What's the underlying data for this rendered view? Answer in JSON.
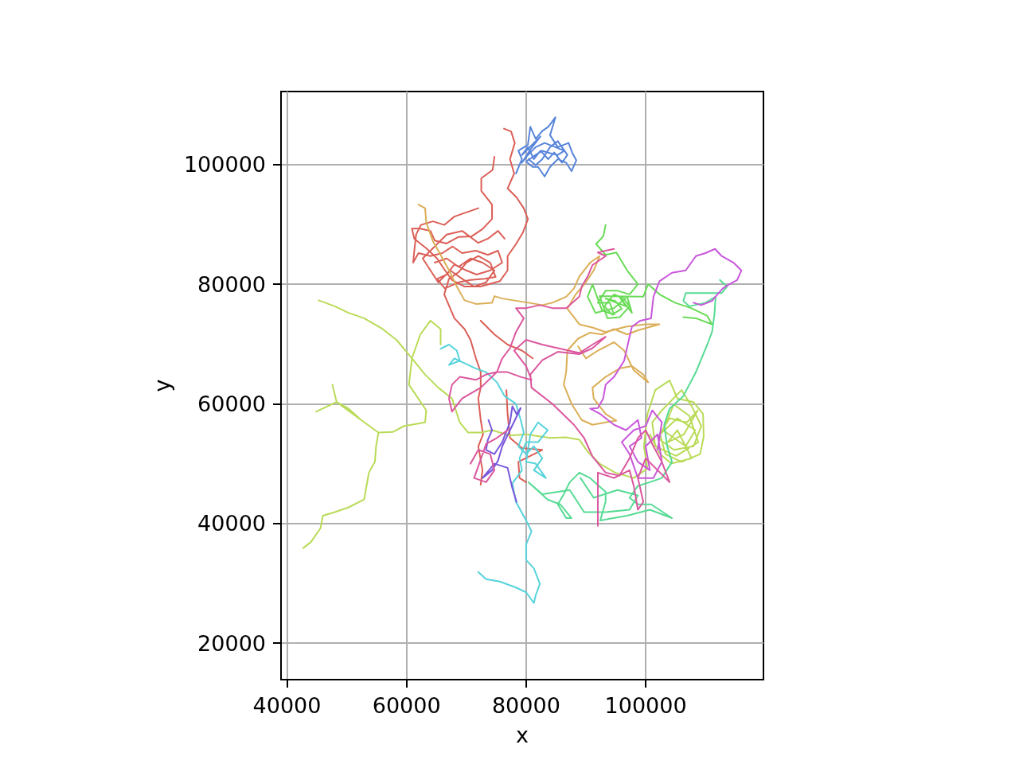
{
  "chart_data": {
    "type": "line",
    "xlabel": "x",
    "ylabel": "y",
    "xlim": [
      39000,
      119700
    ],
    "ylim": [
      13900,
      112200
    ],
    "xticks": [
      40000,
      60000,
      80000,
      100000
    ],
    "yticks": [
      20000,
      40000,
      60000,
      80000,
      100000
    ],
    "grid": true,
    "marker": "none",
    "line_style": "solid",
    "series": [
      {
        "color": "#db5f57",
        "x": [
          76300,
          77500,
          78100,
          77300,
          78000,
          76900,
          78400,
          79600,
          80300,
          79500,
          78300,
          76900,
          76900,
          75600,
          72400,
          69700,
          67600,
          66300,
          65100,
          63300,
          61300,
          60900,
          62300,
          64000,
          64700,
          66700,
          68700,
          70900,
          72700,
          74300,
          74300,
          72500,
          72500,
          74400,
          74700,
          null,
          72000,
          69700,
          68000,
          66300,
          64400,
          62400,
          61600,
          61300,
          61100,
          62000,
          64000,
          66000,
          67700,
          69300,
          71600,
          73600,
          75300,
          76000,
          74000,
          71700,
          70000,
          68000,
          66700,
          65100,
          66400,
          68700,
          70700,
          73100,
          74900,
          74000,
          72000,
          70000,
          68700,
          67100,
          66300,
          68000,
          69700,
          70700,
          71600,
          72400,
          72400,
          72000,
          72400,
          72800,
          72000,
          72700,
          72400,
          null,
          72400,
          74700,
          76900,
          79300,
          81100,
          null,
          76700,
          76900,
          77300,
          79300,
          82700,
          78700,
          78900,
          80000,
          null,
          64700,
          66700,
          68700,
          70700,
          72700,
          74700,
          73300,
          71300,
          69300,
          67300,
          65300,
          64000,
          62700,
          64700,
          66700,
          69300,
          72000,
          73600,
          75300,
          76400
        ],
        "values": [
          106000,
          105500,
          103600,
          100900,
          98500,
          96000,
          94500,
          92700,
          90900,
          88700,
          86700,
          84700,
          82300,
          80500,
          79600,
          79600,
          80700,
          82500,
          84300,
          86000,
          87600,
          89300,
          89300,
          88900,
          87300,
          86800,
          87900,
          88000,
          89200,
          90900,
          93300,
          95600,
          97700,
          99100,
          101300,
          null,
          92700,
          91900,
          91300,
          89900,
          90500,
          89900,
          88300,
          85600,
          83600,
          85200,
          84700,
          85200,
          86300,
          85200,
          85600,
          84900,
          85600,
          83600,
          82300,
          81600,
          82300,
          83300,
          81600,
          80900,
          79300,
          80300,
          80700,
          80900,
          81200,
          83600,
          84700,
          83600,
          82000,
          80900,
          78300,
          74300,
          72500,
          70700,
          67600,
          65300,
          62700,
          60900,
          57300,
          54900,
          52900,
          48900,
          46500,
          null,
          73900,
          71600,
          69900,
          68900,
          67600,
          null,
          62300,
          58300,
          54300,
          52600,
          52300,
          50300,
          47600,
          46900,
          null,
          83600,
          84300,
          82900,
          84300,
          83600,
          82300,
          80300,
          79600,
          80900,
          82300,
          80300,
          82300,
          84300,
          86300,
          88300,
          88900,
          86900,
          87600,
          88900,
          87600
        ]
      },
      {
        "color": "#dbae57",
        "x": [
          62000,
          63100,
          63300,
          64400,
          65700,
          67100,
          68400,
          69700,
          71600,
          74300,
          74700,
          76000,
          80400,
          82700,
          84400,
          86700,
          88000,
          88900,
          90700,
          92300,
          91300,
          90000,
          88300,
          86900,
          88900,
          91300,
          93300,
          96700,
          100000,
          102300,
          98700,
          96900,
          94700,
          92700,
          90700,
          88700,
          86900,
          86700,
          86300,
          87600,
          89300,
          91100,
          93300,
          95100,
          93300,
          91300,
          91100,
          93300,
          95600,
          97700,
          99600,
          100400,
          98000,
          96400,
          94700,
          92000,
          90000,
          88700
        ],
        "values": [
          93300,
          92700,
          90300,
          87200,
          84900,
          82300,
          79600,
          77300,
          76700,
          76900,
          78000,
          77600,
          76900,
          76500,
          76900,
          77900,
          79300,
          81300,
          83600,
          84700,
          82300,
          80300,
          78300,
          75900,
          73300,
          72700,
          72000,
          72900,
          73300,
          73300,
          72300,
          71600,
          72500,
          71600,
          71900,
          70900,
          68900,
          65300,
          63200,
          60000,
          57300,
          56500,
          56900,
          57200,
          58300,
          60900,
          62700,
          64500,
          65900,
          66300,
          64900,
          63600,
          65600,
          68900,
          70300,
          68900,
          67600,
          69600
        ]
      },
      {
        "color": "#b9db57",
        "x": [
          42700,
          44000,
          45600,
          46000,
          48000,
          50300,
          52900,
          53700,
          54700,
          54900,
          55300,
          52400,
          50300,
          48300,
          47600,
          48300,
          44900,
          48300,
          52400,
          55300,
          57700,
          59600,
          63100,
          63300,
          60400,
          60900,
          62300,
          64000,
          65700,
          65700,
          null,
          45300,
          48000,
          50300,
          52900,
          56000,
          58300,
          60900,
          63100,
          65300,
          67600,
          68900,
          70300,
          72400,
          74300,
          77300,
          80000,
          84000,
          86700,
          88900,
          90300,
          92300,
          94900,
          98000,
          100300,
          99700,
          100300,
          101600,
          104000,
          105300,
          108000,
          109600,
          109700,
          109100,
          106000,
          103300,
          102400,
          105300,
          108300,
          106700,
          102900,
          104700,
          107300,
          108800,
          105100,
          101600,
          101100,
          102700,
          106000,
          107700,
          109300,
          108000,
          104700,
          102000,
          104000,
          106900,
          108700,
          106400,
          103700,
          105300,
          107700,
          104300,
          102400,
          100700
        ],
        "values": [
          35900,
          36900,
          39200,
          41300,
          41900,
          42700,
          44000,
          48500,
          50300,
          52900,
          55200,
          57300,
          59200,
          60300,
          63200,
          60300,
          58700,
          60300,
          57300,
          55200,
          55300,
          56300,
          56900,
          58900,
          63200,
          67600,
          71600,
          73900,
          72500,
          69900,
          null,
          77300,
          76300,
          75200,
          74300,
          72500,
          70700,
          67600,
          64900,
          62700,
          60900,
          56900,
          55200,
          55200,
          55600,
          54700,
          54900,
          54300,
          54400,
          54000,
          52000,
          50000,
          48500,
          47600,
          49200,
          52900,
          58300,
          62300,
          63900,
          60900,
          60300,
          58300,
          54500,
          51600,
          50300,
          51600,
          54900,
          57600,
          55600,
          52900,
          55600,
          59900,
          58000,
          53600,
          51300,
          52900,
          56900,
          58900,
          62300,
          59600,
          56300,
          52900,
          52300,
          54300,
          57600,
          56900,
          58900,
          54900,
          53600,
          55600,
          50900,
          50000,
          51600,
          54900
        ]
      },
      {
        "color": "#69db57",
        "x": [
          93300,
          92900,
          91700,
          93300,
          95100,
          96900,
          98700,
          97300,
          95300,
          93300,
          92000,
          94000,
          94700,
          92700,
          91100,
          90300,
          91600,
          94700,
          96900,
          97700,
          95600,
          96700,
          93300,
          94900,
          96000,
          94400,
          93100,
          94700,
          96300,
          97300,
          95700,
          93600,
          92300,
          99600,
          100400,
          102300,
          104900,
          107600,
          110300,
          111100,
          108400,
          106300
        ],
        "values": [
          89900,
          88000,
          86700,
          84900,
          85300,
          82300,
          80000,
          78300,
          78900,
          78900,
          76900,
          76900,
          74900,
          75600,
          80000,
          77900,
          75200,
          76000,
          77900,
          75200,
          77900,
          76300,
          77600,
          77200,
          75900,
          74900,
          76300,
          78300,
          77600,
          76300,
          74500,
          74300,
          78000,
          77900,
          80000,
          78300,
          76900,
          76000,
          74700,
          73300,
          74300,
          74500
        ]
      },
      {
        "color": "#57db94",
        "x": [
          112400,
          113600,
          112700,
          109300,
          106700,
          106300,
          107300,
          110000,
          111700,
          111500,
          111100,
          110300,
          108400,
          106300,
          104000,
          103100,
          103600,
          104400,
          102700,
          100700,
          98700,
          97300,
          98700,
          100900,
          104400,
          100700,
          96900,
          92400,
          93300,
          93300,
          90700,
          88900,
          87300,
          86300,
          85300,
          86700,
          87600,
          85700,
          83600,
          80400,
          82700,
          87300,
          89700,
          93300,
          97300,
          98700,
          95300,
          91300,
          89100
        ],
        "values": [
          80700,
          79600,
          78500,
          78500,
          78500,
          77200,
          76300,
          76900,
          77900,
          74900,
          72000,
          69900,
          65300,
          61300,
          59200,
          56500,
          52900,
          50300,
          47600,
          46900,
          46300,
          44300,
          43200,
          43200,
          40900,
          42300,
          41300,
          40500,
          43700,
          45300,
          47600,
          48500,
          46900,
          44900,
          43200,
          40900,
          40900,
          43200,
          44000,
          46900,
          44900,
          45600,
          41900,
          41900,
          42300,
          44700,
          45600,
          44300,
          47600
        ]
      },
      {
        "color": "#57d3db",
        "x": [
          65700,
          67100,
          68400,
          68900,
          67100,
          68000,
          71600,
          73300,
          75100,
          76400,
          78300,
          79100,
          79600,
          78700,
          80000,
          81300,
          82700,
          81300,
          83300,
          81600,
          80000,
          80700,
          82000,
          83600,
          82000,
          80000,
          78900,
          79300,
          77700,
          78300,
          80000,
          80900,
          80000,
          80000,
          81300,
          82300,
          81600,
          81300,
          80000,
          78300,
          75600,
          73300,
          72000
        ],
        "values": [
          69200,
          69900,
          68900,
          67200,
          66500,
          67600,
          65900,
          65300,
          63600,
          61300,
          60000,
          57300,
          55200,
          52900,
          51600,
          52900,
          50900,
          48900,
          47600,
          50000,
          50300,
          54900,
          56900,
          55600,
          53600,
          53600,
          50900,
          48900,
          46700,
          43600,
          40500,
          38700,
          36500,
          33900,
          32500,
          29900,
          28000,
          26700,
          28500,
          29300,
          30300,
          30700,
          31900
        ]
      },
      {
        "color": "#5784db",
        "x": [
          78300,
          79300,
          78700,
          80300,
          80700,
          81600,
          82700,
          83700,
          84900,
          84000,
          85300,
          87100,
          87700,
          88400,
          87600,
          86700,
          85300,
          84000,
          83100,
          82000,
          81100,
          80000,
          81600,
          82700,
          84000,
          85300,
          86400,
          84900,
          83100,
          81600,
          80300,
          79300,
          80700,
          82400,
          79300,
          80300,
          81300,
          82400,
          83700,
          84700,
          86000,
          86900,
          85300,
          84000,
          82700,
          81600,
          80400
        ],
        "values": [
          98500,
          100900,
          102300,
          103300,
          106300,
          104300,
          105600,
          106300,
          107900,
          104900,
          102900,
          103600,
          102000,
          100700,
          98900,
          100300,
          100900,
          99600,
          98000,
          99600,
          99600,
          100500,
          101600,
          102300,
          101900,
          101600,
          102300,
          102900,
          103600,
          102900,
          101600,
          100300,
          102500,
          104700,
          101600,
          102900,
          100900,
          102300,
          100900,
          102000,
          100300,
          101600,
          103900,
          102900,
          100900,
          99900,
          100900
        ]
      },
      {
        "color": "#7957db",
        "x": [
          73700,
          74300,
          73600,
          73300,
          74700,
          76000,
          77300,
          77700,
          78400,
          79100,
          77300,
          76000,
          75300,
          74300,
          72700,
          74700,
          76900,
          77300,
          77700,
          78400
        ],
        "values": [
          57300,
          55600,
          54000,
          52300,
          51600,
          53600,
          56900,
          59600,
          58300,
          59300,
          55600,
          52900,
          50500,
          48900,
          47600,
          50000,
          49300,
          47600,
          45900,
          43600
        ]
      },
      {
        "color": "#c957db",
        "x": [
          108000,
          109300,
          111100,
          112000,
          112900,
          114000,
          115300,
          116000,
          114700,
          112700,
          111600,
          110000,
          108400,
          106700,
          104400,
          102300,
          101300,
          100900,
          99100,
          97700,
          97300,
          96400,
          94700,
          93300,
          92900,
          92000,
          90700,
          92400,
          94700,
          96700,
          98700,
          99300,
          97300,
          98700,
          100700,
          100000,
          102000,
          102700,
          101300,
          98700,
          97300,
          96000,
          98000,
          100000,
          101100,
          102700,
          102000
        ],
        "values": [
          76900,
          76500,
          77200,
          78300,
          79300,
          80000,
          80700,
          82300,
          83600,
          84700,
          85900,
          85200,
          84700,
          82300,
          81900,
          80500,
          77900,
          74300,
          73900,
          72900,
          71200,
          67200,
          64500,
          63200,
          60900,
          59300,
          59200,
          58300,
          56500,
          55600,
          57300,
          54300,
          52900,
          50300,
          48900,
          52900,
          54900,
          50300,
          47600,
          47600,
          51600,
          53600,
          55600,
          56300,
          58900,
          56900,
          52300
        ]
      },
      {
        "color": "#db579e",
        "x": [
          94700,
          92000,
          93300,
          91100,
          90300,
          89300,
          88900,
          86700,
          84400,
          82300,
          80000,
          78300,
          79600,
          78300,
          77300,
          76000,
          75100,
          73300,
          71600,
          68900,
          67600,
          67100,
          67600,
          69300,
          72400,
          75100,
          76900,
          79100,
          80900,
          80000,
          78000,
          80000,
          82700,
          85300,
          88900,
          91100,
          93300,
          91100,
          88900,
          85300,
          82700,
          80700,
          80900,
          84400,
          88000,
          89700,
          91100,
          93300,
          95600,
          97300,
          98700,
          100000,
          101300,
          102700,
          104000,
          102000,
          100000,
          98700,
          99600,
          98700,
          98000,
          97300,
          94700,
          92000,
          92000,
          92000,
          null,
          76900,
          75100,
          73300,
          72400,
          71300,
          73300,
          74700,
          74000,
          72000,
          70700
        ],
        "values": [
          85900,
          85300,
          84700,
          83200,
          81300,
          79600,
          77900,
          76000,
          76000,
          76500,
          76000,
          76000,
          74300,
          72000,
          69300,
          67600,
          65300,
          64900,
          64000,
          64500,
          63200,
          60900,
          58700,
          60900,
          62700,
          65300,
          65300,
          64500,
          64000,
          66300,
          68900,
          70700,
          69900,
          69300,
          68500,
          69900,
          71200,
          69300,
          68300,
          68700,
          67300,
          64900,
          62700,
          60000,
          56500,
          54300,
          51200,
          48500,
          48000,
          50900,
          54300,
          55600,
          52900,
          50300,
          46900,
          48900,
          50900,
          47600,
          43600,
          42300,
          46300,
          48900,
          47600,
          48500,
          43200,
          39600,
          null,
          55600,
          54300,
          53300,
          50700,
          47600,
          46900,
          48900,
          51600,
          52300,
          50000
        ]
      }
    ]
  }
}
